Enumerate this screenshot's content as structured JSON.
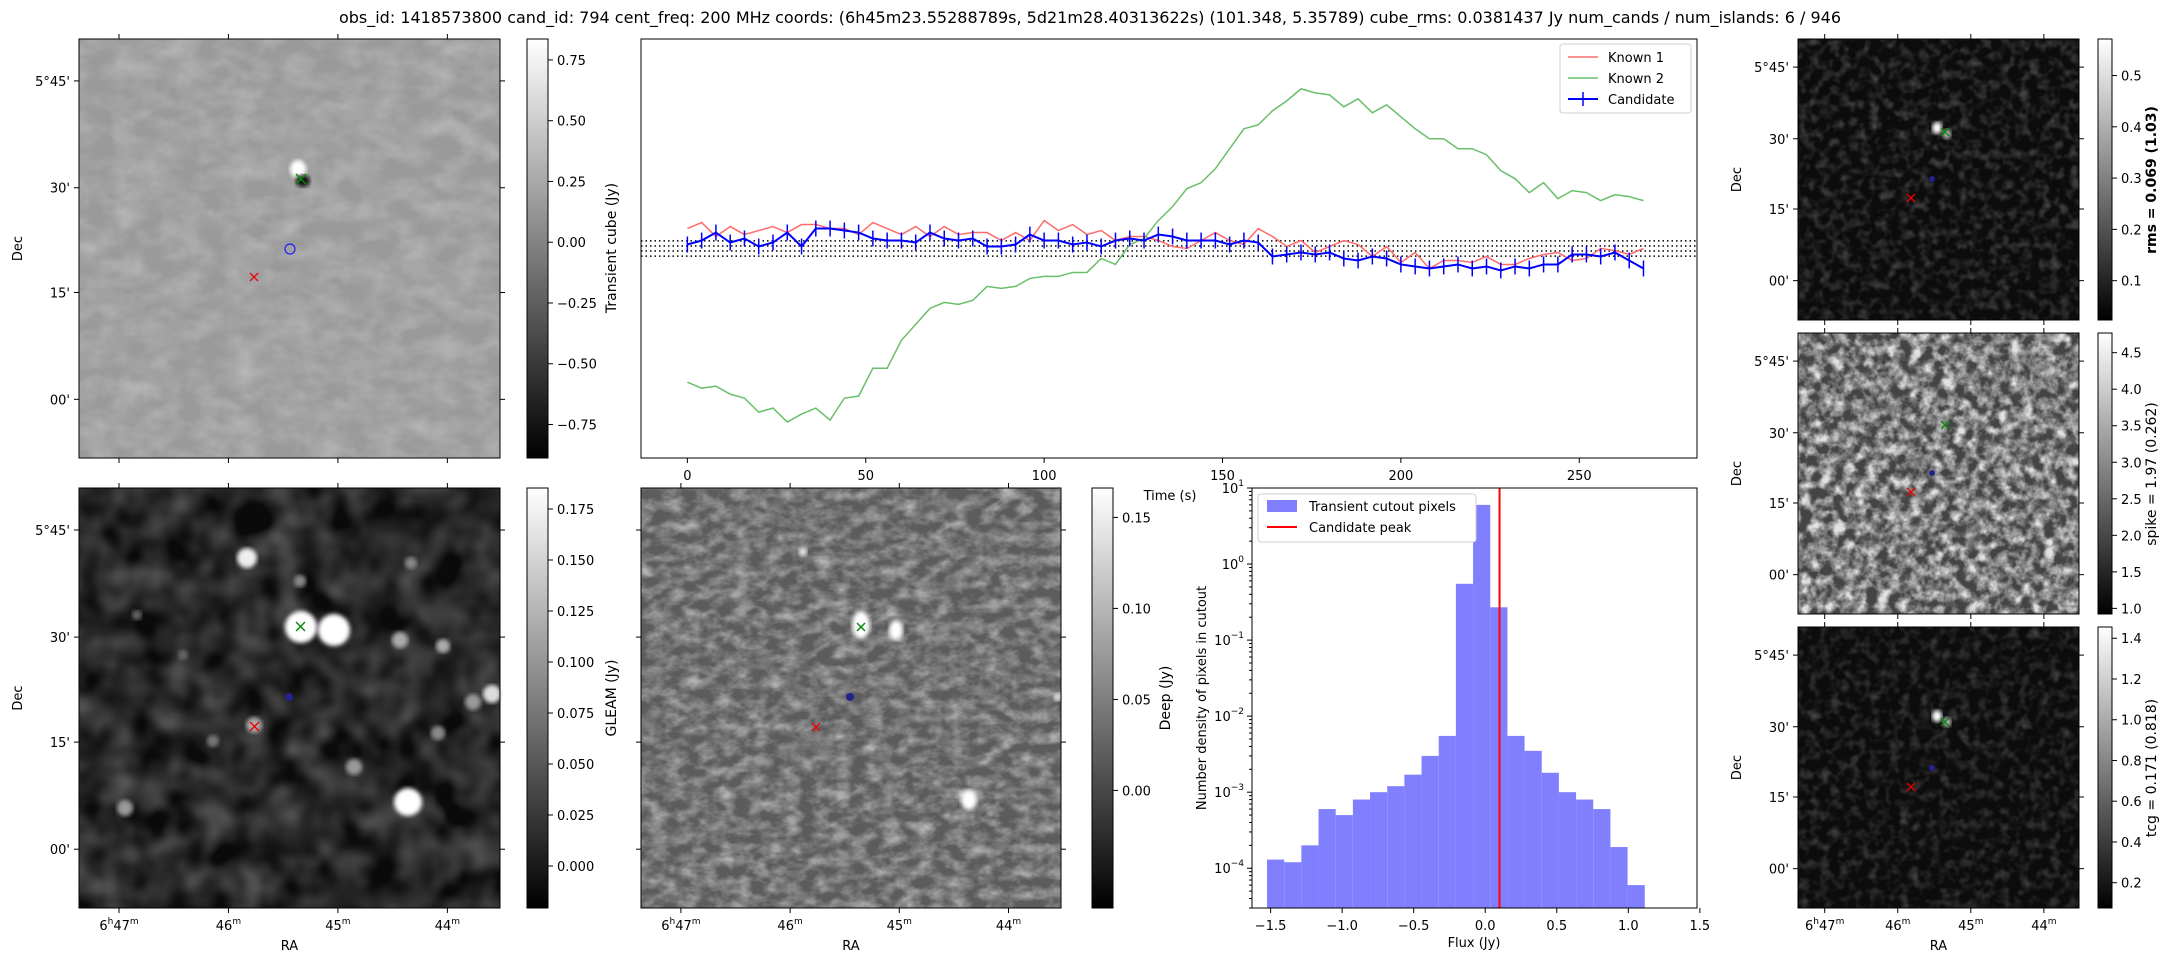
{
  "header": {
    "title": "obs_id: 1418573800 cand_id: 794 cent_freq: 200 MHz coords: (6h45m23.55288789s, 5d21m28.40313622s) (101.348, 5.35789) cube_rms: 0.0381437 Jy num_cands / num_islands: 6 / 946"
  },
  "sky_axes": {
    "ra_label": "RA",
    "dec_label": "Dec",
    "ra_ticks": [
      {
        "h": "6",
        "m": "47",
        "sup_h": "h",
        "sup_m": "m"
      },
      {
        "h": "",
        "m": "46",
        "sup_h": "",
        "sup_m": "m"
      },
      {
        "h": "",
        "m": "45",
        "sup_h": "",
        "sup_m": "m"
      },
      {
        "h": "",
        "m": "44",
        "sup_h": "",
        "sup_m": "m"
      }
    ],
    "dec_ticks": [
      "5°45'",
      "30'",
      "15'",
      "00'"
    ]
  },
  "panels": {
    "transient_image": {
      "colorbar_label": "Transient cube (Jy)",
      "colorbar_ticks": [
        "0.75",
        "0.50",
        "0.25",
        "0.00",
        "−0.25",
        "−0.50",
        "−0.75"
      ]
    },
    "gleam_image": {
      "colorbar_label": "GLEAM (Jy)",
      "colorbar_ticks": [
        "0.175",
        "0.150",
        "0.125",
        "0.100",
        "0.075",
        "0.050",
        "0.025",
        "0.000"
      ]
    },
    "deep_image": {
      "colorbar_label": "Deep (Jy)",
      "colorbar_ticks": [
        "0.15",
        "0.10",
        "0.05",
        "0.00"
      ]
    },
    "rms_image": {
      "colorbar_label": "rms = 0.069 (1.03)",
      "colorbar_ticks": [
        "0.5",
        "0.4",
        "0.3",
        "0.2",
        "0.1"
      ]
    },
    "spike_image": {
      "colorbar_label": "spike = 1.97 (0.262)",
      "colorbar_ticks": [
        "4.5",
        "4.0",
        "3.5",
        "3.0",
        "2.5",
        "2.0",
        "1.5",
        "1.0"
      ]
    },
    "tcg_image": {
      "colorbar_label": "tcg = 0.171 (0.818)",
      "colorbar_ticks": [
        "1.4",
        "1.2",
        "1.0",
        "0.8",
        "0.6",
        "0.4",
        "0.2"
      ]
    }
  },
  "chart_data": [
    {
      "type": "line",
      "title": "",
      "xlabel": "Time (s)",
      "ylabel": "",
      "xlim": [
        -13,
        283
      ],
      "ylim": [
        -1.05,
        1.05
      ],
      "x_ticks": [
        0,
        50,
        100,
        150,
        200,
        250
      ],
      "legend_position": "top-right",
      "reference_lines": [
        0.0381,
        0.0127,
        -0.0127,
        -0.0381
      ],
      "series": [
        {
          "name": "Known 1",
          "color": "#ff6b6b",
          "start": 0,
          "step": 4,
          "values": [
            0.1,
            0.13,
            0.06,
            0.11,
            0.07,
            0.09,
            0.11,
            0.08,
            0.12,
            0.12,
            0.1,
            0.1,
            0.07,
            0.13,
            0.1,
            0.07,
            0.11,
            0.06,
            0.11,
            0.07,
            0.08,
            0.08,
            0.04,
            0.08,
            0.04,
            0.14,
            0.09,
            0.12,
            0.07,
            0.09,
            0.04,
            0.06,
            0.06,
            0.04,
            0.01,
            0.0,
            0.04,
            0.08,
            0.04,
            0.02,
            0.1,
            0.06,
            0.01,
            0.04,
            -0.02,
            0.01,
            0.04,
            0.02,
            -0.04,
            0.01,
            -0.07,
            -0.02,
            -0.1,
            -0.06,
            -0.06,
            -0.07,
            -0.04,
            -0.08,
            -0.08,
            -0.05,
            -0.03,
            -0.02,
            -0.06,
            -0.05,
            0.0,
            -0.01,
            -0.03,
            0.0
          ]
        },
        {
          "name": "Known 2",
          "color": "#6abf6a",
          "start": 0,
          "step": 4,
          "values": [
            -0.67,
            -0.7,
            -0.69,
            -0.73,
            -0.75,
            -0.82,
            -0.8,
            -0.87,
            -0.83,
            -0.8,
            -0.86,
            -0.75,
            -0.74,
            -0.6,
            -0.6,
            -0.46,
            -0.38,
            -0.3,
            -0.27,
            -0.28,
            -0.26,
            -0.19,
            -0.2,
            -0.19,
            -0.15,
            -0.14,
            -0.14,
            -0.12,
            -0.12,
            -0.05,
            -0.08,
            0.02,
            0.05,
            0.14,
            0.21,
            0.3,
            0.33,
            0.4,
            0.5,
            0.6,
            0.62,
            0.69,
            0.74,
            0.8,
            0.78,
            0.77,
            0.71,
            0.75,
            0.68,
            0.72,
            0.66,
            0.6,
            0.55,
            0.55,
            0.5,
            0.5,
            0.47,
            0.39,
            0.35,
            0.28,
            0.33,
            0.25,
            0.29,
            0.28,
            0.24,
            0.27,
            0.26,
            0.24
          ]
        },
        {
          "name": "Candidate",
          "color": "#0000ff",
          "start": 0,
          "step": 4,
          "error": 0.04,
          "values": [
            0.02,
            0.04,
            0.08,
            0.03,
            0.05,
            0.01,
            0.03,
            0.08,
            0.01,
            0.1,
            0.1,
            0.09,
            0.08,
            0.05,
            0.04,
            0.04,
            0.03,
            0.08,
            0.05,
            0.04,
            0.05,
            0.01,
            0.01,
            0.02,
            0.07,
            0.04,
            0.04,
            0.02,
            0.03,
            0.01,
            0.04,
            0.05,
            0.04,
            0.07,
            0.06,
            0.04,
            0.04,
            0.04,
            0.02,
            0.04,
            0.03,
            -0.04,
            -0.03,
            -0.02,
            -0.03,
            -0.02,
            -0.05,
            -0.06,
            -0.04,
            -0.05,
            -0.08,
            -0.09,
            -0.1,
            -0.09,
            -0.08,
            -0.1,
            -0.09,
            -0.11,
            -0.09,
            -0.1,
            -0.08,
            -0.08,
            -0.03,
            -0.03,
            -0.04,
            -0.02,
            -0.06,
            -0.1
          ]
        }
      ]
    },
    {
      "type": "bar",
      "title": "",
      "xlabel": "Flux (Jy)",
      "ylabel": "Number density of pixels in cutout",
      "xlim": [
        -1.63,
        1.48
      ],
      "ylim": [
        3e-05,
        10
      ],
      "y_scale": "log",
      "x_ticks": [
        "−1.5",
        "−1.0",
        "−0.5",
        "0.0",
        "0.5",
        "1.0",
        "1.5"
      ],
      "legend_position": "top-left",
      "series": [
        {
          "name": "Transient cutout pixels",
          "color": "#8080ff",
          "bin_start": -1.525,
          "bin_width": 0.12,
          "values": [
            0.00013,
            0.00012,
            0.0002,
            0.0006,
            0.0005,
            0.0008,
            0.001,
            0.0012,
            0.0017,
            0.003,
            0.0055,
            0.55,
            6.0,
            0.27,
            0.0055,
            0.0035,
            0.0018,
            0.001,
            0.0008,
            0.0006,
            0.00019,
            6e-05
          ]
        },
        {
          "name": "Candidate peak",
          "color": "#ff0000",
          "x": 0.1
        }
      ]
    }
  ]
}
